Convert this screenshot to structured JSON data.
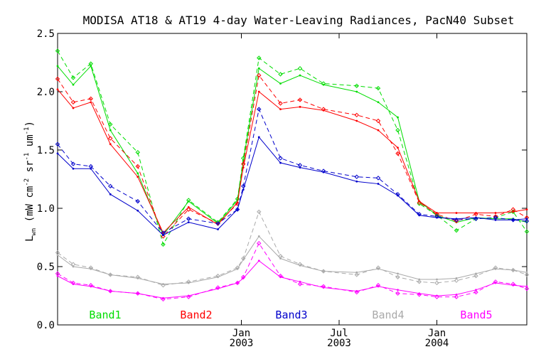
{
  "chart_data": {
    "type": "line",
    "title": "MODISA AT18 & AT19 4-day Water-Leaving Radiances, PacN40 Subset",
    "ylabel": {
      "main": "L",
      "sub": "wn",
      "rest1": " (mW cm",
      "sup1": "-2",
      "rest2": " sr",
      "sup2": "-1",
      "rest3": " um",
      "sup3": "-1",
      "rest4": ")"
    },
    "xlim": [
      2002.06,
      2004.46
    ],
    "ylim": [
      0.0,
      2.5
    ],
    "yticks": [
      0.0,
      0.5,
      1.0,
      1.5,
      2.0,
      2.5
    ],
    "ytick_labels": [
      "0.0",
      "0.5",
      "1.0",
      "1.5",
      "2.0",
      "2.5"
    ],
    "xticks": [
      {
        "t": 2003.0,
        "month": "Jan",
        "year": "2003"
      },
      {
        "t": 2003.5,
        "month": "Jul",
        "year": "2003"
      },
      {
        "t": 2004.0,
        "month": "Jan",
        "year": "2004"
      }
    ],
    "x": [
      2002.06,
      2002.14,
      2002.23,
      2002.33,
      2002.47,
      2002.6,
      2002.73,
      2002.88,
      2002.98,
      2003.01,
      2003.09,
      2003.2,
      2003.3,
      2003.42,
      2003.59,
      2003.7,
      2003.8,
      2003.91,
      2004.0,
      2004.1,
      2004.2,
      2004.3,
      2004.39,
      2004.46
    ],
    "series": [
      {
        "name": "Band1",
        "color": "#00dd00",
        "at18": [
          2.22,
          2.06,
          2.22,
          1.67,
          1.3,
          0.77,
          1.06,
          0.87,
          1.07,
          1.41,
          2.2,
          2.07,
          2.14,
          2.06,
          2.0,
          1.91,
          1.78,
          1.06,
          0.94,
          0.88,
          0.92,
          0.91,
          0.91,
          0.88
        ],
        "at19": [
          2.35,
          2.12,
          2.24,
          1.72,
          1.48,
          0.69,
          1.07,
          0.88,
          1.08,
          1.43,
          2.29,
          2.15,
          2.2,
          2.07,
          2.05,
          2.03,
          1.67,
          1.04,
          0.94,
          0.81,
          0.91,
          0.92,
          0.97,
          0.8
        ]
      },
      {
        "name": "Band2",
        "color": "#ff0000",
        "at18": [
          2.02,
          1.86,
          1.91,
          1.55,
          1.27,
          0.79,
          1.01,
          0.86,
          1.05,
          1.35,
          2.0,
          1.85,
          1.87,
          1.84,
          1.75,
          1.67,
          1.52,
          1.06,
          0.96,
          0.96,
          0.96,
          0.96,
          0.97,
          0.99
        ],
        "at19": [
          2.11,
          1.91,
          1.94,
          1.6,
          1.36,
          0.76,
          0.99,
          0.87,
          1.04,
          1.38,
          2.14,
          1.9,
          1.93,
          1.85,
          1.8,
          1.75,
          1.47,
          1.05,
          0.95,
          0.89,
          0.95,
          0.93,
          0.99,
          0.92
        ]
      },
      {
        "name": "Band3",
        "color": "#0000cc",
        "at18": [
          1.47,
          1.34,
          1.34,
          1.12,
          0.98,
          0.77,
          0.88,
          0.82,
          0.99,
          1.16,
          1.61,
          1.39,
          1.35,
          1.31,
          1.23,
          1.21,
          1.11,
          0.94,
          0.92,
          0.91,
          0.92,
          0.9,
          0.9,
          0.91
        ],
        "at19": [
          1.55,
          1.38,
          1.36,
          1.19,
          1.06,
          0.79,
          0.91,
          0.87,
          0.99,
          1.19,
          1.85,
          1.43,
          1.37,
          1.32,
          1.27,
          1.26,
          1.12,
          0.95,
          0.93,
          0.9,
          0.91,
          0.92,
          0.9,
          0.89
        ]
      },
      {
        "name": "Band4",
        "color": "#aaaaaa",
        "at18": [
          0.6,
          0.5,
          0.48,
          0.43,
          0.4,
          0.35,
          0.36,
          0.41,
          0.48,
          0.56,
          0.76,
          0.57,
          0.51,
          0.46,
          0.45,
          0.48,
          0.44,
          0.39,
          0.39,
          0.4,
          0.44,
          0.48,
          0.47,
          0.45
        ],
        "at19": [
          0.62,
          0.52,
          0.49,
          0.43,
          0.41,
          0.34,
          0.37,
          0.42,
          0.49,
          0.57,
          0.97,
          0.59,
          0.52,
          0.46,
          0.43,
          0.49,
          0.41,
          0.37,
          0.36,
          0.38,
          0.42,
          0.49,
          0.47,
          0.43
        ]
      },
      {
        "name": "Band5",
        "color": "#ff00ff",
        "at18": [
          0.42,
          0.35,
          0.33,
          0.29,
          0.27,
          0.23,
          0.25,
          0.31,
          0.36,
          0.4,
          0.55,
          0.41,
          0.37,
          0.32,
          0.29,
          0.33,
          0.3,
          0.27,
          0.25,
          0.26,
          0.3,
          0.36,
          0.34,
          0.33
        ],
        "at19": [
          0.44,
          0.36,
          0.34,
          0.29,
          0.27,
          0.22,
          0.24,
          0.32,
          0.36,
          0.41,
          0.7,
          0.42,
          0.35,
          0.33,
          0.28,
          0.34,
          0.27,
          0.26,
          0.24,
          0.24,
          0.28,
          0.37,
          0.35,
          0.31
        ]
      }
    ]
  }
}
